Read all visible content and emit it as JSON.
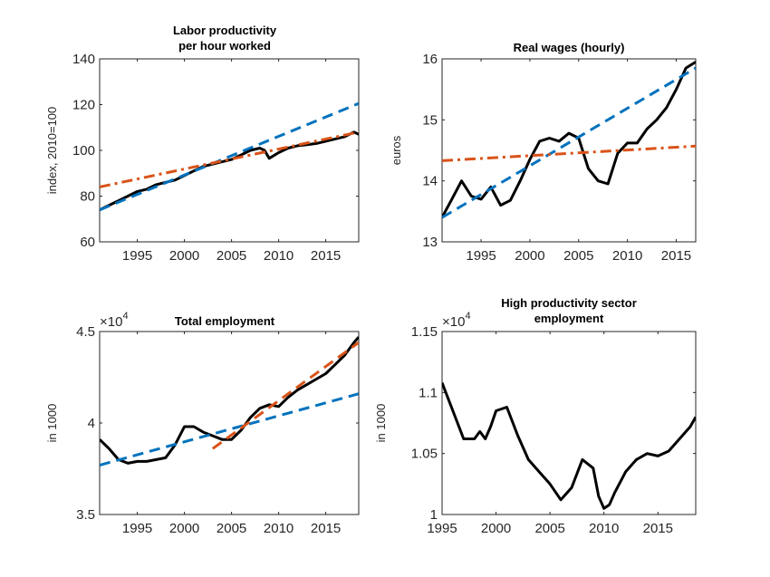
{
  "colors": {
    "actual": "#000000",
    "trend_blue": "#0072BD",
    "trend_orange": "#D95319"
  },
  "chart_data": [
    {
      "type": "line",
      "title": "Labor productivity per hour worked",
      "title_lines": [
        "Labor productivity",
        "per hour worked"
      ],
      "ylabel": "index, 2010=100",
      "exponent": "",
      "xlim": [
        1991,
        2018.5
      ],
      "ylim": [
        60,
        140
      ],
      "xticks": [
        1995,
        2000,
        2005,
        2010,
        2015
      ],
      "yticks": [
        60,
        80,
        100,
        120,
        140
      ],
      "ytick_labels": [
        "60",
        "80",
        "100",
        "120",
        "140"
      ],
      "series": [
        {
          "role": "actual",
          "style": "solid",
          "color": "#000000",
          "x": [
            1991,
            1992,
            1993,
            1994,
            1995,
            1996,
            1997,
            1998,
            1999,
            2000,
            2001,
            2002,
            2003,
            2004,
            2005,
            2006,
            2007,
            2008,
            2008.5,
            2009,
            2010,
            2011,
            2012,
            2013,
            2014,
            2015,
            2016,
            2017,
            2018,
            2018.5
          ],
          "y": [
            74,
            76,
            78,
            80,
            82,
            83,
            85,
            86,
            87,
            89,
            91,
            93,
            94,
            95,
            96,
            98,
            100,
            101,
            100,
            96.5,
            99,
            101,
            102,
            102.5,
            103,
            104,
            105,
            106,
            108,
            107
          ]
        },
        {
          "role": "trend",
          "style": "dashed",
          "color": "#0072BD",
          "x": [
            1991,
            2018.5
          ],
          "y": [
            74,
            120.5
          ]
        },
        {
          "role": "trend",
          "style": "dashdot",
          "color": "#D95319",
          "x": [
            1991,
            2018.5
          ],
          "y": [
            84,
            108
          ]
        }
      ]
    },
    {
      "type": "line",
      "title": "Real wages (hourly)",
      "title_lines": [
        "Real wages (hourly)"
      ],
      "ylabel": "euros",
      "exponent": "",
      "xlim": [
        1991,
        2017
      ],
      "ylim": [
        13,
        16
      ],
      "xticks": [
        1995,
        2000,
        2005,
        2010,
        2015
      ],
      "yticks": [
        13,
        14,
        15,
        16
      ],
      "ytick_labels": [
        "13",
        "14",
        "15",
        "16"
      ],
      "series": [
        {
          "role": "actual",
          "style": "solid",
          "color": "#000000",
          "x": [
            1991,
            1992,
            1993,
            1994,
            1995,
            1996,
            1997,
            1998,
            1999,
            2000,
            2001,
            2002,
            2003,
            2004,
            2005,
            2006,
            2007,
            2008,
            2009,
            2010,
            2011,
            2012,
            2013,
            2014,
            2015,
            2016,
            2017
          ],
          "y": [
            13.4,
            13.7,
            14.0,
            13.75,
            13.7,
            13.9,
            13.6,
            13.68,
            14.0,
            14.35,
            14.65,
            14.7,
            14.65,
            14.78,
            14.7,
            14.2,
            14.0,
            13.95,
            14.45,
            14.62,
            14.62,
            14.85,
            15.0,
            15.2,
            15.5,
            15.85,
            15.95
          ]
        },
        {
          "role": "trend",
          "style": "dashed",
          "color": "#0072BD",
          "x": [
            1991,
            2017
          ],
          "y": [
            13.4,
            15.85
          ]
        },
        {
          "role": "trend",
          "style": "dashdot",
          "color": "#D95319",
          "x": [
            1991,
            2017
          ],
          "y": [
            14.33,
            14.57
          ]
        }
      ]
    },
    {
      "type": "line",
      "title": "Total employment",
      "title_lines": [
        "Total employment"
      ],
      "ylabel": "in 1000",
      "exponent": "4",
      "xlim": [
        1991,
        2018.5
      ],
      "ylim": [
        3.5,
        4.5
      ],
      "xticks": [
        1995,
        2000,
        2005,
        2010,
        2015
      ],
      "yticks": [
        3.5,
        4,
        4.5
      ],
      "ytick_labels": [
        "3.5",
        "4",
        "4.5"
      ],
      "series": [
        {
          "role": "actual",
          "style": "solid",
          "color": "#000000",
          "x": [
            1991,
            1992,
            1993,
            1994,
            1995,
            1996,
            1997,
            1998,
            1999,
            2000,
            2001,
            2002,
            2003,
            2004,
            2005,
            2006,
            2007,
            2008,
            2009,
            2010,
            2011,
            2012,
            2013,
            2014,
            2015,
            2016,
            2017,
            2018,
            2018.5
          ],
          "y": [
            3.91,
            3.86,
            3.8,
            3.78,
            3.79,
            3.79,
            3.8,
            3.81,
            3.88,
            3.98,
            3.98,
            3.95,
            3.93,
            3.91,
            3.91,
            3.96,
            4.03,
            4.08,
            4.1,
            4.09,
            4.14,
            4.18,
            4.21,
            4.24,
            4.27,
            4.32,
            4.37,
            4.44,
            4.47
          ]
        },
        {
          "role": "trend",
          "style": "dashed",
          "color": "#0072BD",
          "x": [
            1991,
            2018.5
          ],
          "y": [
            3.77,
            4.16
          ]
        },
        {
          "role": "trend",
          "style": "dashed",
          "color": "#D95319",
          "x": [
            2003,
            2018.5
          ],
          "y": [
            3.86,
            4.44
          ]
        }
      ]
    },
    {
      "type": "line",
      "title": "High productivity sector employment",
      "title_lines": [
        "High productivity sector",
        "employment"
      ],
      "ylabel": "in 1000",
      "exponent": "4",
      "xlim": [
        1995,
        2018.5
      ],
      "ylim": [
        1.0,
        1.15
      ],
      "xticks": [
        1995,
        2000,
        2005,
        2010,
        2015
      ],
      "yticks": [
        1.0,
        1.05,
        1.1,
        1.15
      ],
      "ytick_labels": [
        "1",
        "1.05",
        "1.1",
        "1.15"
      ],
      "series": [
        {
          "role": "actual",
          "style": "solid",
          "color": "#000000",
          "x": [
            1995,
            1996,
            1997,
            1998,
            1998.5,
            1999,
            1999.5,
            2000,
            2001,
            2002,
            2003,
            2004,
            2005,
            2006,
            2007,
            2008,
            2009,
            2009.5,
            2010,
            2010.5,
            2011,
            2012,
            2013,
            2014,
            2015,
            2016,
            2017,
            2018,
            2018.5
          ],
          "y": [
            1.108,
            1.085,
            1.062,
            1.062,
            1.068,
            1.062,
            1.072,
            1.085,
            1.088,
            1.065,
            1.045,
            1.035,
            1.025,
            1.012,
            1.022,
            1.045,
            1.038,
            1.015,
            1.005,
            1.008,
            1.018,
            1.035,
            1.045,
            1.05,
            1.048,
            1.052,
            1.062,
            1.072,
            1.08
          ]
        }
      ]
    }
  ]
}
